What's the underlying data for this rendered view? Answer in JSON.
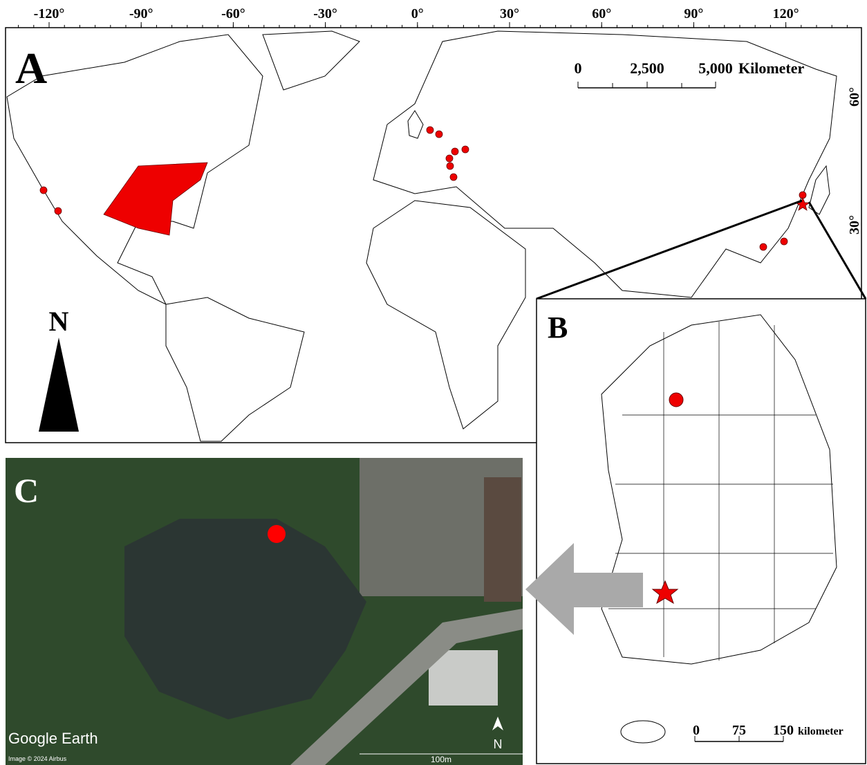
{
  "panel_a": {
    "label": "A",
    "lon_labels": [
      "-120°",
      "-90°",
      "-60°",
      "-30°",
      "0°",
      "30°",
      "60°",
      "90°",
      "120°"
    ],
    "lat_labels": [
      "60°",
      "30°"
    ],
    "scale_bar": {
      "ticks": [
        "0",
        "2,500",
        "5,000"
      ],
      "unit": "Kilometer"
    },
    "north": "N"
  },
  "panel_b": {
    "label": "B",
    "scale_bar": {
      "ticks": [
        "0",
        "75",
        "150"
      ],
      "unit": "kilometer"
    }
  },
  "panel_c": {
    "label": "C",
    "brand": "Google Earth",
    "credit": "Image © 2024 Airbus",
    "scale": "100m",
    "north": "N"
  }
}
